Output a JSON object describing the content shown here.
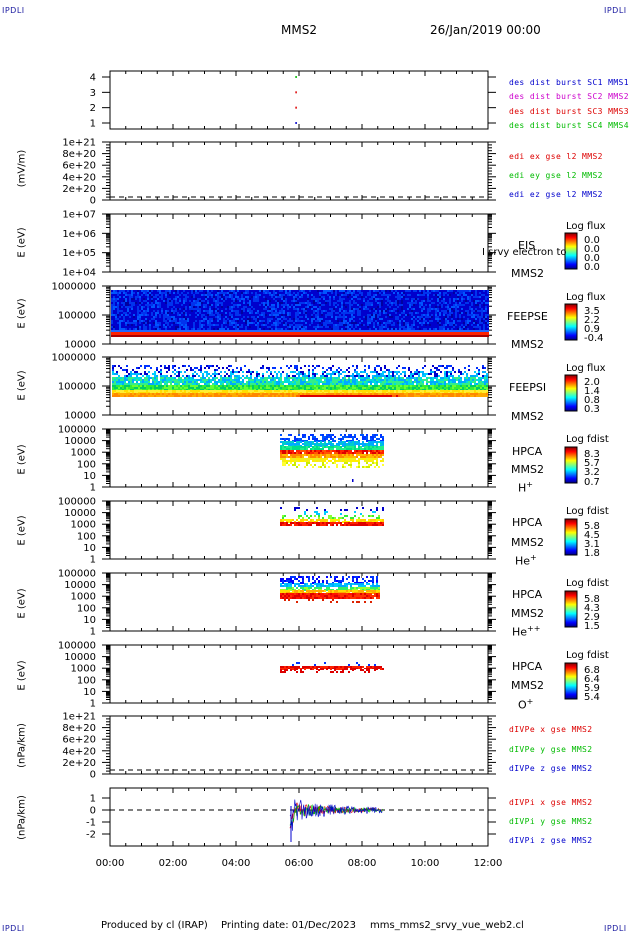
{
  "corners": {
    "tl": "IPDLI",
    "tr": "IPDLI",
    "bl": "IPDLI",
    "br": "IPDLI"
  },
  "header": {
    "spacecraft": "MMS2",
    "datetime": "26/Jan/2019 00:00"
  },
  "footer": {
    "produced": "Produced by cl (IRAP)",
    "printed": "Printing date: 01/Dec/2023",
    "file": "mms_mms2_srvy_vue_web2.cl"
  },
  "colors": {
    "blue": "#0000cc",
    "magenta": "#cc00cc",
    "red": "#dd0000",
    "green": "#00bb00"
  },
  "chart_data": {
    "type": "line",
    "x_axis": {
      "ticks": [
        "00:00",
        "02:00",
        "04:00",
        "06:00",
        "08:00",
        "10:00",
        "12:00"
      ],
      "range_hours": [
        0,
        12
      ]
    },
    "panels": [
      {
        "id": "burst",
        "yticks": [
          "4",
          "3",
          "2",
          "1"
        ],
        "ylim": [
          0.5,
          4.5
        ],
        "legend": [
          {
            "text": "des dist burst SC1 MMS1",
            "color": "blue"
          },
          {
            "text": "des dist burst SC2 MMS2",
            "color": "magenta"
          },
          {
            "text": "des dist burst SC3 MMS3",
            "color": "red"
          },
          {
            "text": "des dist burst SC4 MMS4",
            "color": "green"
          }
        ],
        "points": [
          {
            "x": 5.9,
            "y": 4,
            "color": "green"
          },
          {
            "x": 5.9,
            "y": 3,
            "color": "red"
          },
          {
            "x": 5.9,
            "y": 2,
            "color": "red"
          },
          {
            "x": 5.9,
            "y": 1,
            "color": "blue"
          }
        ]
      },
      {
        "id": "edi",
        "ylabel": "(mV/m)",
        "yticks": [
          "1e+21",
          "8e+20",
          "6e+20",
          "4e+20",
          "2e+20",
          "0"
        ],
        "legend": [
          {
            "text": "edi ex gse l2 MMS2",
            "color": "red"
          },
          {
            "text": "edi ey gse l2 MMS2",
            "color": "green"
          },
          {
            "text": "edi ez gse l2 MMS2",
            "color": "blue"
          }
        ]
      },
      {
        "id": "eis",
        "ylabel": "E (eV)",
        "yticks": [
          "1e+07",
          "1e+06",
          "1e+05",
          "1e+04"
        ],
        "side": [
          "EIS",
          "MMS2"
        ],
        "overlay_text": "I srvy electron to",
        "colorbar": {
          "title": "Log flux",
          "values": [
            "0.0",
            "0.0",
            "0.0",
            "0.0"
          ]
        }
      },
      {
        "id": "feepse",
        "ylabel": "E (eV)",
        "yticks": [
          "1000000",
          "100000",
          "10000"
        ],
        "side": [
          "FEEPSE",
          "MMS2"
        ],
        "colorbar": {
          "title": "Log flux",
          "values": [
            "3.5",
            "2.2",
            "0.9",
            "-0.4"
          ]
        }
      },
      {
        "id": "feepsi",
        "ylabel": "E (eV)",
        "yticks": [
          "1000000",
          "100000",
          "10000"
        ],
        "side": [
          "FEEPSI",
          "MMS2"
        ],
        "colorbar": {
          "title": "Log flux",
          "values": [
            "2.0",
            "1.4",
            "0.8",
            "0.3"
          ]
        }
      },
      {
        "id": "hpca_h",
        "ylabel": "E (eV)",
        "yticks": [
          "100000",
          "10000",
          "1000",
          "100",
          "10",
          "1"
        ],
        "side": [
          "HPCA",
          "MMS2"
        ],
        "species": "H",
        "charge": "+",
        "colorbar": {
          "title": "Log fdist",
          "values": [
            "8.3",
            "5.7",
            "3.2",
            "0.7"
          ]
        }
      },
      {
        "id": "hpca_he",
        "ylabel": "E (eV)",
        "yticks": [
          "100000",
          "10000",
          "1000",
          "100",
          "10",
          "1"
        ],
        "side": [
          "HPCA",
          "MMS2"
        ],
        "species": "He",
        "charge": "+",
        "colorbar": {
          "title": "Log fdist",
          "values": [
            "5.8",
            "4.5",
            "3.1",
            "1.8"
          ]
        }
      },
      {
        "id": "hpca_he2",
        "ylabel": "E (eV)",
        "yticks": [
          "100000",
          "10000",
          "1000",
          "100",
          "10",
          "1"
        ],
        "side": [
          "HPCA",
          "MMS2"
        ],
        "species": "He",
        "charge": "++",
        "colorbar": {
          "title": "Log fdist",
          "values": [
            "5.8",
            "4.3",
            "2.9",
            "1.5"
          ]
        }
      },
      {
        "id": "hpca_o",
        "ylabel": "E (eV)",
        "yticks": [
          "100000",
          "10000",
          "1000",
          "100",
          "10",
          "1"
        ],
        "side": [
          "HPCA",
          "MMS2"
        ],
        "species": "O",
        "charge": "+",
        "colorbar": {
          "title": "Log fdist",
          "values": [
            "6.8",
            "6.4",
            "5.9",
            "5.4"
          ]
        }
      },
      {
        "id": "divpe",
        "ylabel": "(nPa/km)",
        "yticks": [
          "1e+21",
          "8e+20",
          "6e+20",
          "4e+20",
          "2e+20",
          "0"
        ],
        "legend": [
          {
            "text": "dIVPe x gse MMS2",
            "color": "red"
          },
          {
            "text": "dIVPe y gse MMS2",
            "color": "green"
          },
          {
            "text": "dIVPe z gse MMS2",
            "color": "blue"
          }
        ]
      },
      {
        "id": "divpi",
        "ylabel": "(nPa/km)",
        "yticks": [
          "1",
          "0",
          "-1",
          "-2"
        ],
        "ylim": [
          -2.6,
          1.6
        ],
        "legend": [
          {
            "text": "dIVPi x gse MMS2",
            "color": "red"
          },
          {
            "text": "dIVPi y gse MMS2",
            "color": "green"
          },
          {
            "text": "dIVPi z gse MMS2",
            "color": "blue"
          }
        ]
      }
    ]
  }
}
